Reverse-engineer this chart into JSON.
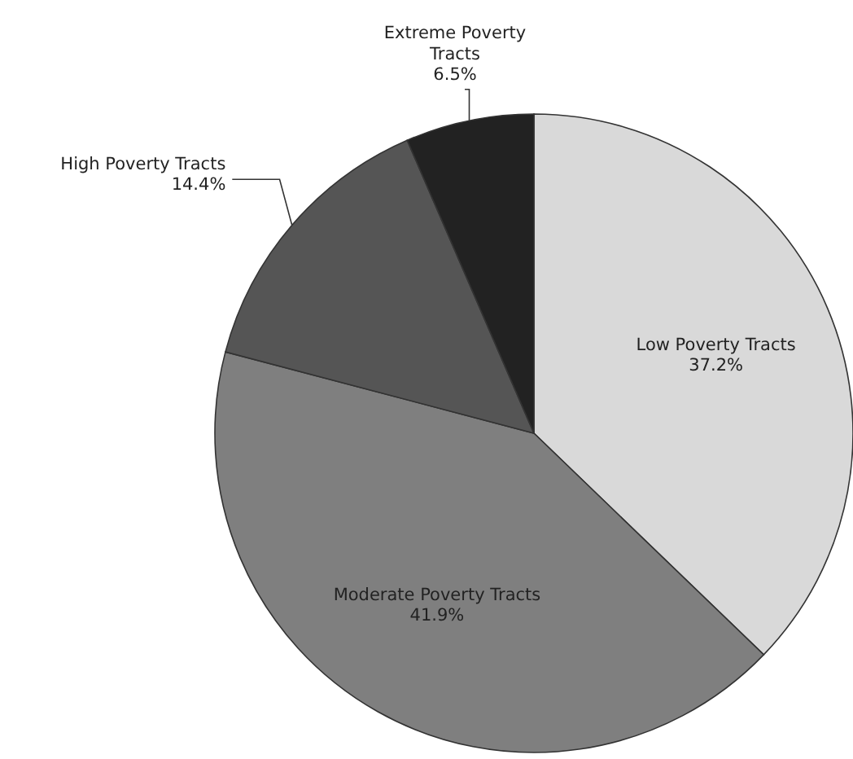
{
  "chart_data": {
    "type": "pie",
    "categories": [
      "Low Poverty Tracts",
      "Moderate Poverty Tracts",
      "High Poverty Tracts",
      "Extreme Poverty Tracts"
    ],
    "values": [
      37.2,
      41.9,
      14.4,
      6.5
    ],
    "colors": [
      "#d9d9d9",
      "#7f7f7f",
      "#555555",
      "#222222"
    ],
    "value_labels": [
      "37.2%",
      "41.9%",
      "14.4%",
      "6.5%"
    ],
    "legend": false
  }
}
